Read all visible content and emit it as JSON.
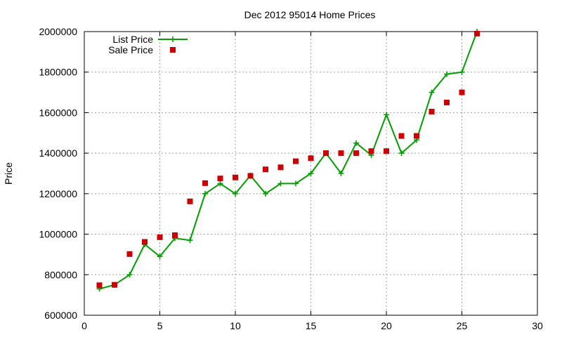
{
  "chart_data": {
    "type": "line",
    "title": "Dec 2012 95014 Home Prices",
    "xlabel": "",
    "ylabel": "Price",
    "xlim": [
      0,
      30
    ],
    "ylim": [
      600000,
      2000000
    ],
    "xticks": [
      0,
      5,
      10,
      15,
      20,
      25,
      30
    ],
    "yticks": [
      600000,
      800000,
      1000000,
      1200000,
      1400000,
      1600000,
      1800000,
      2000000
    ],
    "grid": true,
    "legend": "top-left",
    "series": [
      {
        "name": "List Price",
        "style": "linespoints",
        "color": "#00a000",
        "x": [
          1,
          2,
          3,
          4,
          5,
          6,
          7,
          8,
          9,
          10,
          11,
          12,
          13,
          14,
          15,
          16,
          17,
          18,
          19,
          20,
          21,
          22,
          23,
          24,
          25,
          26
        ],
        "y": [
          730000,
          750000,
          800000,
          950000,
          890000,
          980000,
          970000,
          1200000,
          1250000,
          1200000,
          1290000,
          1200000,
          1250000,
          1250000,
          1300000,
          1400000,
          1300000,
          1450000,
          1390000,
          1590000,
          1400000,
          1465000,
          1700000,
          1790000,
          1800000,
          2000000
        ]
      },
      {
        "name": "Sale Price",
        "style": "points",
        "color": "#cc0000",
        "x": [
          1,
          2,
          3,
          4,
          5,
          6,
          7,
          8,
          9,
          10,
          11,
          12,
          13,
          14,
          15,
          16,
          17,
          18,
          19,
          20,
          21,
          22,
          23,
          24,
          25,
          26
        ],
        "y": [
          748000,
          750000,
          902000,
          962000,
          985000,
          995000,
          1162000,
          1252000,
          1275000,
          1280000,
          1288000,
          1320000,
          1330000,
          1360000,
          1375000,
          1400000,
          1400000,
          1400000,
          1410000,
          1410000,
          1485000,
          1485000,
          1605000,
          1650000,
          1700000,
          1990000
        ]
      }
    ]
  }
}
